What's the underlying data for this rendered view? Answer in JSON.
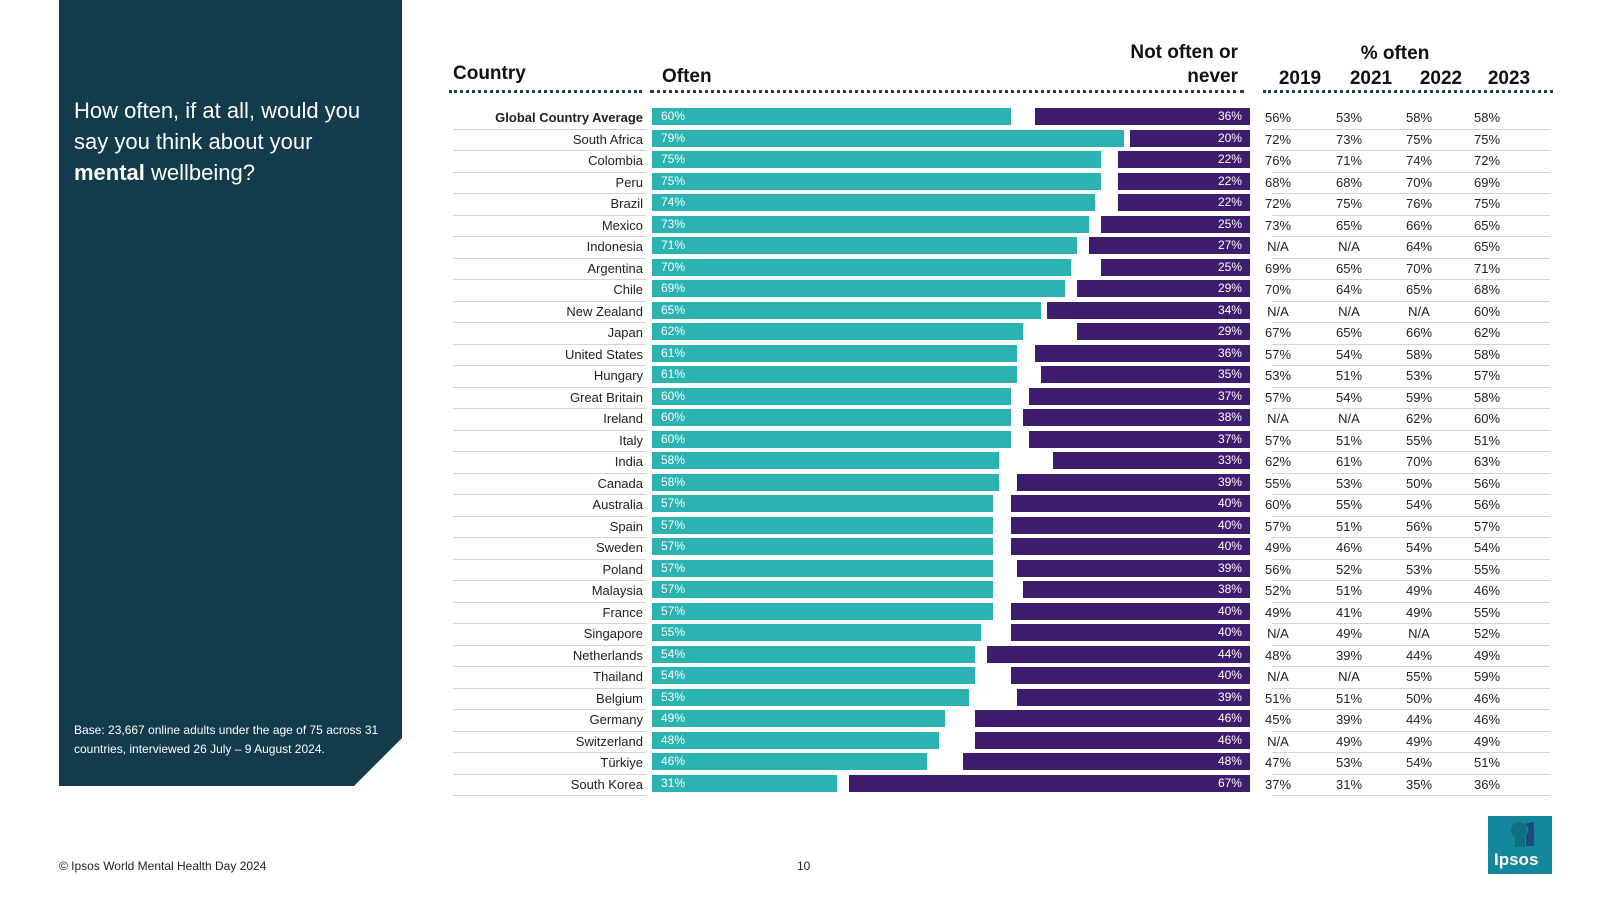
{
  "question": {
    "part1": "How often, if at all, would you say you think about your ",
    "bold": "mental",
    "part2": " wellbeing?"
  },
  "base_note": "Base: 23,667 online adults under the age of 75 across 31 countries, interviewed 26 July – 9 August 2024.",
  "headers": {
    "country": "Country",
    "often": "Often",
    "not_often_line1": "Not often or",
    "not_often_line2": "never",
    "pct_often": "% often",
    "years": [
      "2019",
      "2021",
      "2022",
      "2023"
    ]
  },
  "colors": {
    "panel": "#123b4c",
    "often": "#2ab3b0",
    "not_often": "#3e1c6e",
    "logo": "#15879a"
  },
  "chart_data": {
    "type": "bar",
    "orientation": "horizontal-stacked-diverging",
    "xlim": [
      0,
      100
    ],
    "categories": [
      "Global Country Average",
      "South Africa",
      "Colombia",
      "Peru",
      "Brazil",
      "Mexico",
      "Indonesia",
      "Argentina",
      "Chile",
      "New Zealand",
      "Japan",
      "United States",
      "Hungary",
      "Great Britain",
      "Ireland",
      "Italy",
      "India",
      "Canada",
      "Australia",
      "Spain",
      "Sweden",
      "Poland",
      "Malaysia",
      "France",
      "Singapore",
      "Netherlands",
      "Thailand",
      "Belgium",
      "Germany",
      "Switzerland",
      "Türkiye",
      "South Korea"
    ],
    "series": [
      {
        "name": "Often",
        "values": [
          60,
          79,
          75,
          75,
          74,
          73,
          71,
          70,
          69,
          65,
          62,
          61,
          61,
          60,
          60,
          60,
          58,
          58,
          57,
          57,
          57,
          57,
          57,
          57,
          55,
          54,
          54,
          53,
          49,
          48,
          46,
          31
        ]
      },
      {
        "name": "Not often or never",
        "values": [
          36,
          20,
          22,
          22,
          22,
          25,
          27,
          25,
          29,
          34,
          29,
          36,
          35,
          37,
          38,
          37,
          33,
          39,
          40,
          40,
          40,
          39,
          38,
          40,
          40,
          44,
          40,
          39,
          46,
          46,
          48,
          67
        ]
      }
    ],
    "labels_often": [
      "60%",
      "79%",
      "75%",
      "75%",
      "74%",
      "73%",
      "71%",
      "70%",
      "69%",
      "65%",
      "62%",
      "61%",
      "61%",
      "60%",
      "60%",
      "60%",
      "58%",
      "58%",
      "57%",
      "57%",
      "57%",
      "57%",
      "57%",
      "57%",
      "55%",
      "54%",
      "54%",
      "53%",
      "49%",
      "48%",
      "46%",
      "31%"
    ],
    "labels_never": [
      "36%",
      "20%",
      "22%",
      "22%",
      "22%",
      "25%",
      "27%",
      "25%",
      "29%",
      "34%",
      "29%",
      "36%",
      "35%",
      "37%",
      "38%",
      "37%",
      "33%",
      "39%",
      "40%",
      "40%",
      "40%",
      "39%",
      "38%",
      "40%",
      "40%",
      "44%",
      "40%",
      "39%",
      "46%",
      "46%",
      "48%",
      "67%"
    ],
    "trend_table": {
      "years": [
        "2019",
        "2021",
        "2022",
        "2023"
      ],
      "rows": [
        [
          "56%",
          "53%",
          "58%",
          "58%"
        ],
        [
          "72%",
          "73%",
          "75%",
          "75%"
        ],
        [
          "76%",
          "71%",
          "74%",
          "72%"
        ],
        [
          "68%",
          "68%",
          "70%",
          "69%"
        ],
        [
          "72%",
          "75%",
          "76%",
          "75%"
        ],
        [
          "73%",
          "65%",
          "66%",
          "65%"
        ],
        [
          "N/A",
          "N/A",
          "64%",
          "65%"
        ],
        [
          "69%",
          "65%",
          "70%",
          "71%"
        ],
        [
          "70%",
          "64%",
          "65%",
          "68%"
        ],
        [
          "N/A",
          "N/A",
          "N/A",
          "60%"
        ],
        [
          "67%",
          "65%",
          "66%",
          "62%"
        ],
        [
          "57%",
          "54%",
          "58%",
          "58%"
        ],
        [
          "53%",
          "51%",
          "53%",
          "57%"
        ],
        [
          "57%",
          "54%",
          "59%",
          "58%"
        ],
        [
          "N/A",
          "N/A",
          "62%",
          "60%"
        ],
        [
          "57%",
          "51%",
          "55%",
          "51%"
        ],
        [
          "62%",
          "61%",
          "70%",
          "63%"
        ],
        [
          "55%",
          "53%",
          "50%",
          "56%"
        ],
        [
          "60%",
          "55%",
          "54%",
          "56%"
        ],
        [
          "57%",
          "51%",
          "56%",
          "57%"
        ],
        [
          "49%",
          "46%",
          "54%",
          "54%"
        ],
        [
          "56%",
          "52%",
          "53%",
          "55%"
        ],
        [
          "52%",
          "51%",
          "49%",
          "46%"
        ],
        [
          "49%",
          "41%",
          "49%",
          "55%"
        ],
        [
          "N/A",
          "49%",
          "N/A",
          "52%"
        ],
        [
          "48%",
          "39%",
          "44%",
          "49%"
        ],
        [
          "N/A",
          "N/A",
          "55%",
          "59%"
        ],
        [
          "51%",
          "51%",
          "50%",
          "46%"
        ],
        [
          "45%",
          "39%",
          "44%",
          "46%"
        ],
        [
          "N/A",
          "49%",
          "49%",
          "49%"
        ],
        [
          "47%",
          "53%",
          "54%",
          "51%"
        ],
        [
          "37%",
          "31%",
          "35%",
          "36%"
        ]
      ]
    }
  },
  "footer": {
    "copyright": "© Ipsos World Mental Health Day 2024",
    "page_number": "10",
    "logo_text": "Ipsos"
  }
}
